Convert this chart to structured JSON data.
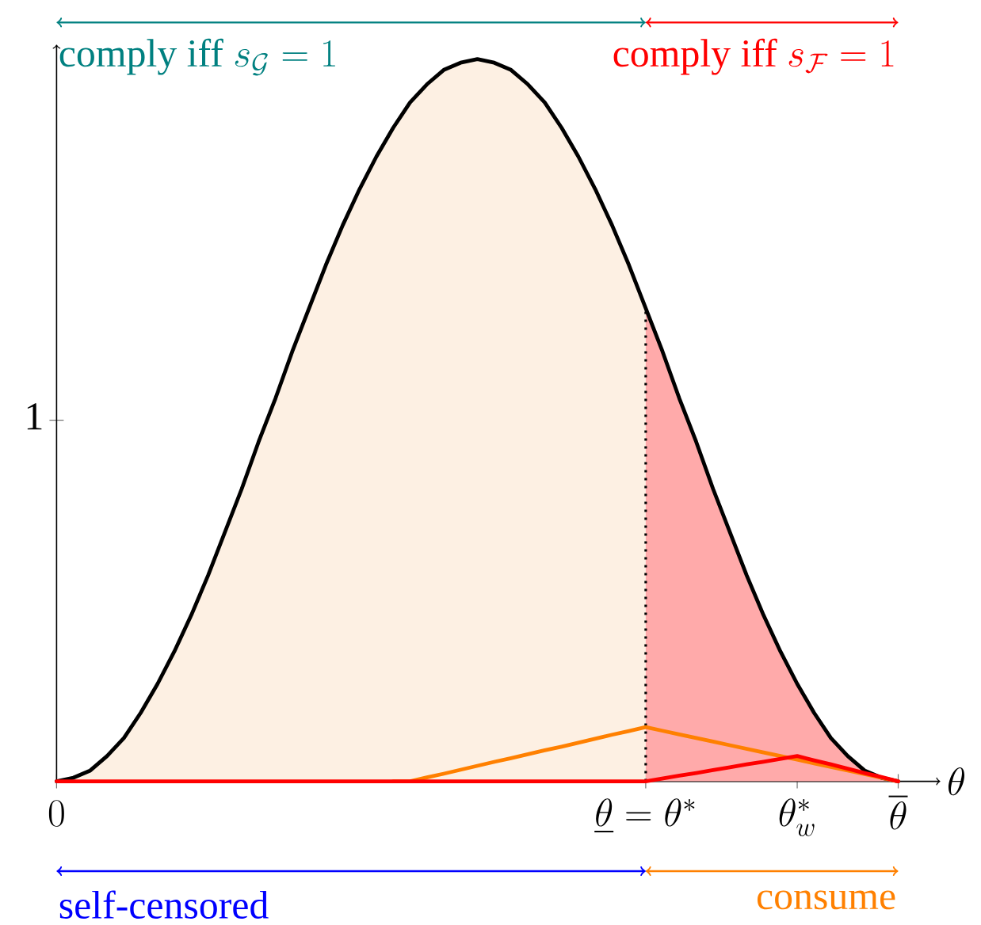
{
  "chart_data": {
    "type": "line",
    "xlabel": "\\theta",
    "categories": [
      "0",
      null,
      null,
      null,
      null,
      null,
      null,
      null,
      null,
      null,
      null,
      null,
      null,
      null,
      null,
      null,
      null,
      null,
      null,
      null,
      null,
      null,
      null,
      null,
      null,
      null,
      null,
      null,
      null,
      null,
      null,
      null,
      null,
      null,
      null,
      "\\underline{\\theta} = \\theta^*",
      null,
      null,
      null,
      null,
      null,
      null,
      null,
      null,
      "\\theta^*_w",
      null,
      null,
      null,
      null,
      null,
      "\\overline{\\theta}"
    ],
    "ylim": [
      0,
      2.04
    ],
    "yticks": [
      1
    ],
    "series": [
      {
        "type": "area",
        "color": "#fdf0e3",
        "values": [
          0,
          0.01,
          0.03,
          0.07,
          0.12,
          0.19,
          0.27,
          0.36,
          0.46,
          0.57,
          0.69,
          0.81,
          0.94,
          1.06,
          1.19,
          1.31,
          1.43,
          1.54,
          1.64,
          1.73,
          1.81,
          1.88,
          1.93,
          1.97,
          1.99,
          2.0,
          1.99,
          1.97,
          1.93,
          1.88,
          1.81,
          1.73,
          1.64,
          1.54,
          1.43,
          1.31,
          null,
          null,
          null,
          null,
          null,
          null,
          null,
          null,
          null,
          null,
          null,
          null,
          null,
          null,
          null
        ]
      },
      {
        "type": "area",
        "color": "#ffaaaa",
        "values": [
          null,
          null,
          null,
          null,
          null,
          null,
          null,
          null,
          null,
          null,
          null,
          null,
          null,
          null,
          null,
          null,
          null,
          null,
          null,
          null,
          null,
          null,
          null,
          null,
          null,
          null,
          null,
          null,
          null,
          null,
          null,
          null,
          null,
          null,
          null,
          1.31,
          1.19,
          1.06,
          0.94,
          0.81,
          0.69,
          0.57,
          0.46,
          0.36,
          0.27,
          0.19,
          0.12,
          0.07,
          0.03,
          0.01,
          0
        ]
      },
      {
        "color": "#000000",
        "values": [
          0,
          0.01,
          0.03,
          0.07,
          0.12,
          0.19,
          0.27,
          0.36,
          0.46,
          0.57,
          0.69,
          0.81,
          0.94,
          1.06,
          1.19,
          1.31,
          1.43,
          1.54,
          1.64,
          1.73,
          1.81,
          1.88,
          1.93,
          1.97,
          1.99,
          2.0,
          1.99,
          1.97,
          1.93,
          1.88,
          1.81,
          1.73,
          1.64,
          1.54,
          1.43,
          1.31,
          1.19,
          1.06,
          0.94,
          0.81,
          0.69,
          0.57,
          0.46,
          0.36,
          0.27,
          0.19,
          0.12,
          0.07,
          0.03,
          0.01,
          0
        ]
      },
      {
        "type": "line",
        "color": "#ff8000",
        "values": [
          null,
          null,
          null,
          null,
          null,
          null,
          null,
          null,
          null,
          null,
          null,
          null,
          null,
          null,
          null,
          null,
          null,
          null,
          null,
          null,
          0,
          0,
          0.011,
          0.021,
          0.032,
          0.043,
          0.054,
          0.064,
          0.075,
          0.086,
          0.096,
          0.107,
          0.118,
          0.129,
          0.139,
          0.15,
          0.14,
          0.13,
          0.12,
          0.11,
          0.1,
          0.09,
          0.08,
          0.07,
          0.06,
          0.05,
          0.04,
          0.03,
          0.02,
          0.01,
          0
        ]
      },
      {
        "type": "line",
        "color": "#ff0000",
        "values": [
          0,
          0,
          0,
          0,
          0,
          0,
          0,
          0,
          0,
          0,
          0,
          0,
          0,
          0,
          0,
          0,
          0,
          0,
          0,
          0,
          0,
          0,
          0,
          0,
          0,
          0,
          0,
          0,
          0,
          0,
          0,
          0,
          0,
          0,
          0,
          0,
          0.008,
          0.016,
          0.023,
          0.031,
          0.039,
          0.047,
          0.054,
          0.062,
          0.07,
          0.058,
          0.047,
          0.035,
          0.023,
          0.012,
          0
        ]
      }
    ],
    "ref_lines": [
      {
        "axis": "x",
        "value": "\\underline{\\theta} = \\theta^*",
        "color": "#000000",
        "line_style": "dotted"
      }
    ],
    "annotations": [
      "\\text{comply iff } s_{\\mathcal{G}} = 1",
      "\\text{comply iff } s_{\\mathcal{F}} = 1",
      "\\text{self-censored}",
      "\\text{consume}"
    ]
  }
}
